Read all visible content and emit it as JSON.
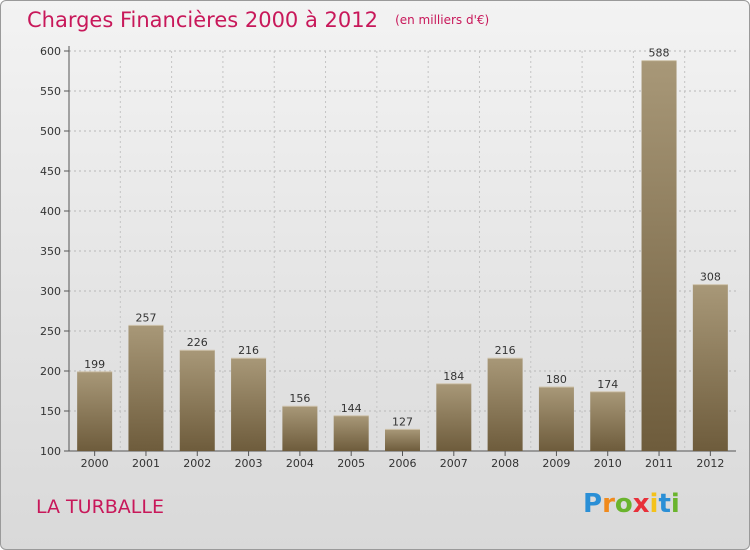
{
  "title": "Charges Financières 2000 à 2012",
  "subtitle": "(en milliers d'€)",
  "commune": "LA TURBALLE",
  "logo": {
    "letters": [
      "P",
      "r",
      "o",
      "x",
      "i",
      "t",
      "i"
    ],
    "colors": [
      "#2a8fd6",
      "#f08a1c",
      "#6ab42d",
      "#e8303a",
      "#f4c21a",
      "#2a8fd6",
      "#6ab42d"
    ]
  },
  "colors": {
    "bar_light": "#a89878",
    "bar_dark": "#6e5c3c",
    "title": "#c8185a"
  },
  "chart_data": {
    "type": "bar",
    "categories": [
      "2000",
      "2001",
      "2002",
      "2003",
      "2004",
      "2005",
      "2006",
      "2007",
      "2008",
      "2009",
      "2010",
      "2011",
      "2012"
    ],
    "values": [
      199,
      257,
      226,
      216,
      156,
      144,
      127,
      184,
      216,
      180,
      174,
      588,
      308
    ],
    "ylim": [
      100,
      600
    ],
    "yticks": [
      100,
      150,
      200,
      250,
      300,
      350,
      400,
      450,
      500,
      550,
      600
    ],
    "grid": true
  }
}
